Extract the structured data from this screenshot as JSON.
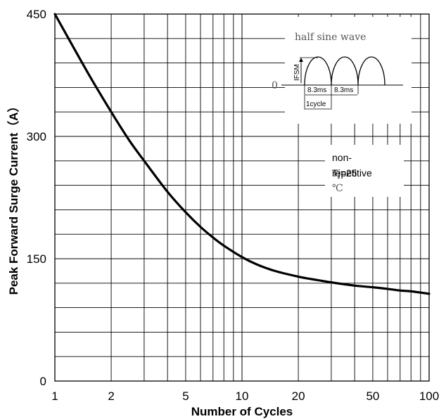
{
  "chart_data": {
    "type": "line",
    "xlabel": "Number of Cycles",
    "ylabel": "Peak Forward Surge Current（A）",
    "x_scale": "log",
    "xlim": [
      1,
      100
    ],
    "ylim": [
      0,
      450
    ],
    "x_ticks": [
      {
        "value": 1,
        "label": "1"
      },
      {
        "value": 2,
        "label": "2"
      },
      {
        "value": 5,
        "label": "5"
      },
      {
        "value": 10,
        "label": "10"
      },
      {
        "value": 20,
        "label": "20"
      },
      {
        "value": 50,
        "label": "50"
      },
      {
        "value": 100,
        "label": "100"
      }
    ],
    "y_ticks": [
      {
        "value": 0,
        "label": "0"
      },
      {
        "value": 150,
        "label": "150"
      },
      {
        "value": 300,
        "label": "300"
      },
      {
        "value": 450,
        "label": "450"
      }
    ],
    "grid": true,
    "legend": "none",
    "series": [
      {
        "x": [
          1,
          1.5,
          2,
          2.5,
          3,
          4,
          5,
          6,
          7,
          8,
          10,
          12,
          15,
          20,
          25,
          30,
          40,
          50,
          60,
          70,
          80,
          100
        ],
        "y": [
          450,
          378,
          330,
          295,
          270,
          232,
          207,
          189,
          176,
          166,
          152,
          143,
          135,
          128,
          124,
          121,
          117,
          115,
          113,
          111,
          110,
          107
        ]
      }
    ],
    "annotations": {
      "waveform_title": "half sine wave",
      "waveform_axis": "IFSM",
      "waveform_zero": "0",
      "period_left": "8.3ms",
      "period_right": "8.3ms",
      "cycle_label": "1cycle",
      "note_line1": "non-",
      "note_line2": "Tj=25",
      "note_line2_overlap": "repetitive",
      "note_line3": "℃"
    }
  }
}
